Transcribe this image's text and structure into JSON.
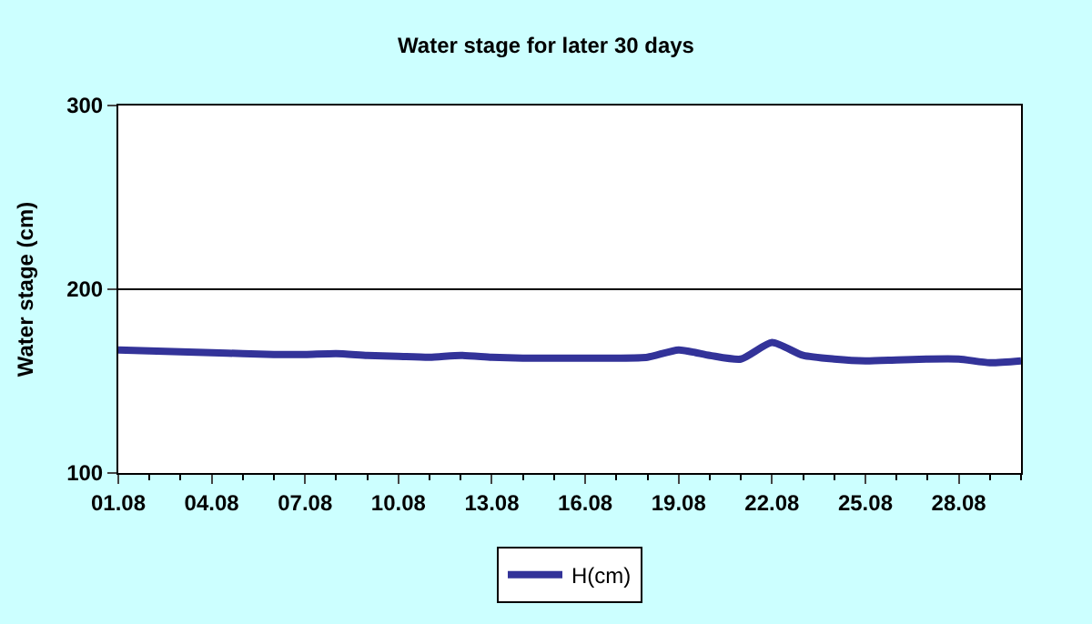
{
  "chart_data": {
    "type": "line",
    "title": "Water stage for later 30 days",
    "ylabel": "Water stage (cm)",
    "categories": [
      "01.08",
      null,
      null,
      "04.08",
      null,
      null,
      "07.08",
      null,
      null,
      "10.08",
      null,
      null,
      "13.08",
      null,
      null,
      "16.08",
      null,
      null,
      "19.08",
      null,
      null,
      "22.08",
      null,
      null,
      "25.08",
      null,
      null,
      "28.08",
      null,
      null
    ],
    "series": [
      {
        "name": "H(cm)",
        "color": "#333399",
        "values": [
          167,
          166.5,
          166,
          165.5,
          165,
          164.5,
          164.5,
          165,
          164,
          163.5,
          163,
          164,
          163,
          162.5,
          162.5,
          162.5,
          162.5,
          163,
          167,
          164,
          162,
          171,
          164,
          162,
          161,
          161.5,
          162,
          162,
          160,
          161
        ]
      }
    ],
    "ylim": [
      100,
      300
    ],
    "yticks": [
      100,
      200,
      300
    ],
    "grid": "y",
    "legend": "bottom",
    "marker": "none",
    "line_style": "solid"
  }
}
